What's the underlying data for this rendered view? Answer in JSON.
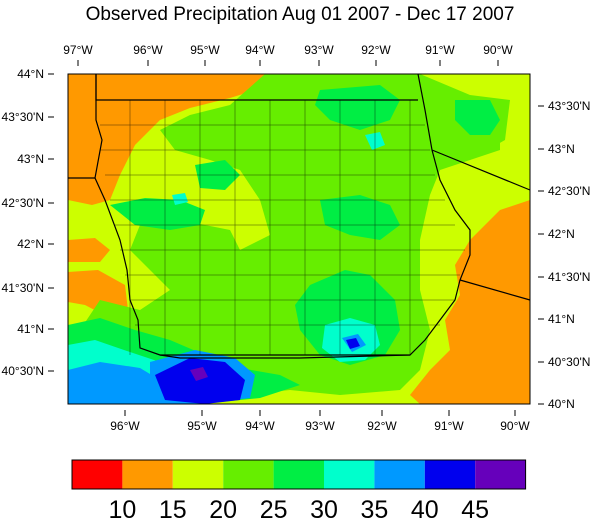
{
  "title": "Observed Precipitation Aug 01 2007 - Dec 17 2007",
  "top_lon_labels": [
    "97°W",
    "96°W",
    "95°W",
    "94°W",
    "93°W",
    "92°W",
    "91°W",
    "90°W"
  ],
  "bottom_lon_labels": [
    "96°W",
    "95°W",
    "94°W",
    "93°W",
    "92°W",
    "91°W",
    "90°W"
  ],
  "left_lat_labels": [
    "44°N",
    "43°30'N",
    "43°N",
    "42°30'N",
    "42°N",
    "41°30'N",
    "41°N",
    "40°30'N"
  ],
  "right_lat_labels": [
    "43°30'N",
    "43°N",
    "42°30'N",
    "42°N",
    "41°30'N",
    "41°N",
    "40°30'N",
    "40°N"
  ],
  "colorbar": {
    "levels": [
      "10",
      "15",
      "20",
      "25",
      "30",
      "35",
      "40",
      "45"
    ],
    "colors": [
      "#ff0000",
      "#ff9900",
      "#ccff00",
      "#66ee00",
      "#00ee44",
      "#00ffcc",
      "#0099ff",
      "#0000ee",
      "#6600bb"
    ]
  },
  "colors": {
    "orange": "#ff9900",
    "yellow": "#ccff00",
    "green": "#66ee00",
    "lime": "#00ee44",
    "cyan": "#00ffcc",
    "blue": "#0099ff",
    "navy": "#0000ee",
    "purple": "#6600bb"
  }
}
